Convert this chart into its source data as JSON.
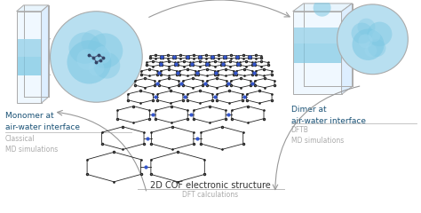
{
  "bg_color": "#ffffff",
  "left_title": "Monomer at\nair-water interface",
  "left_subtitle": "Classical\nMD simulations",
  "right_title": "Dimer at\nair-water interface",
  "right_subtitle": "DFTB\nMD simulations",
  "center_title": "2D COF electronic structure",
  "center_subtitle": "DFT calculations",
  "title_color": "#1a5276",
  "subtitle_color": "#aaaaaa",
  "arrow_color": "#999999",
  "separator_color": "#bbbbbb",
  "hex_color": "#222222",
  "blue_atom_color": "#3355cc",
  "water_light": "#b8dff0",
  "water_mid": "#7ec8e3",
  "water_dark": "#5aafd0",
  "fig_width": 4.74,
  "fig_height": 2.4,
  "dpi": 100
}
